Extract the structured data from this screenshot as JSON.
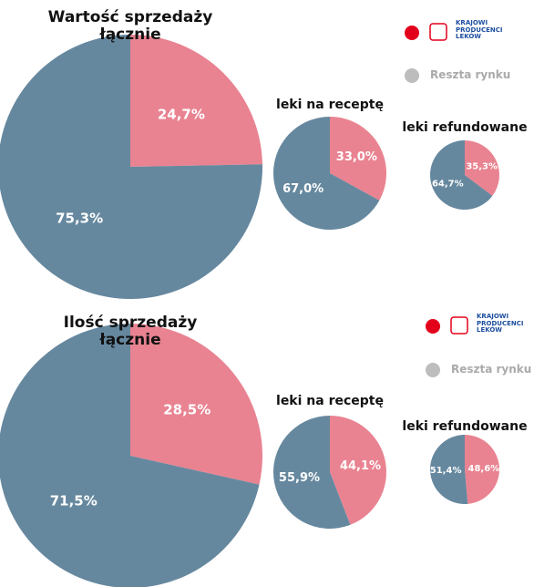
{
  "chart_data": [
    {
      "type": "pie",
      "title": "Wartość sprzedaży łącznie",
      "categories": [
        "KRAJOWI PRODUCENCI LEKÓW",
        "Reszta rynku"
      ],
      "legend_colors": [
        "#e3001b",
        "#bdbdbd"
      ],
      "values": [
        24.7,
        75.3
      ],
      "value_labels": [
        "24,7%",
        "75,3%"
      ],
      "colors": [
        "#e98391",
        "#66889f"
      ]
    },
    {
      "type": "pie",
      "title": "leki na receptę",
      "values": [
        33.0,
        67.0
      ],
      "value_labels": [
        "33,0%",
        "67,0%"
      ],
      "colors": [
        "#e98391",
        "#66889f"
      ]
    },
    {
      "type": "pie",
      "title": "leki refundowane",
      "values": [
        35.3,
        64.7
      ],
      "value_labels": [
        "35,3%",
        "64,7%"
      ],
      "colors": [
        "#e98391",
        "#66889f"
      ]
    },
    {
      "type": "pie",
      "title": "Ilość sprzedaży łącznie",
      "categories": [
        "KRAJOWI PRODUCENCI LEKÓW",
        "Reszta rynku"
      ],
      "legend_colors": [
        "#e3001b",
        "#bdbdbd"
      ],
      "values": [
        28.5,
        71.5
      ],
      "value_labels": [
        "28,5%",
        "71,5%"
      ],
      "colors": [
        "#e98391",
        "#66889f"
      ]
    },
    {
      "type": "pie",
      "title": "leki na receptę",
      "values": [
        44.1,
        55.9
      ],
      "value_labels": [
        "44,1%",
        "55,9%"
      ],
      "colors": [
        "#e98391",
        "#66889f"
      ]
    },
    {
      "type": "pie",
      "title": "leki refundowane",
      "values": [
        48.6,
        51.4
      ],
      "value_labels": [
        "48,6%",
        "51,4%"
      ],
      "colors": [
        "#e98391",
        "#66889f"
      ]
    }
  ]
}
